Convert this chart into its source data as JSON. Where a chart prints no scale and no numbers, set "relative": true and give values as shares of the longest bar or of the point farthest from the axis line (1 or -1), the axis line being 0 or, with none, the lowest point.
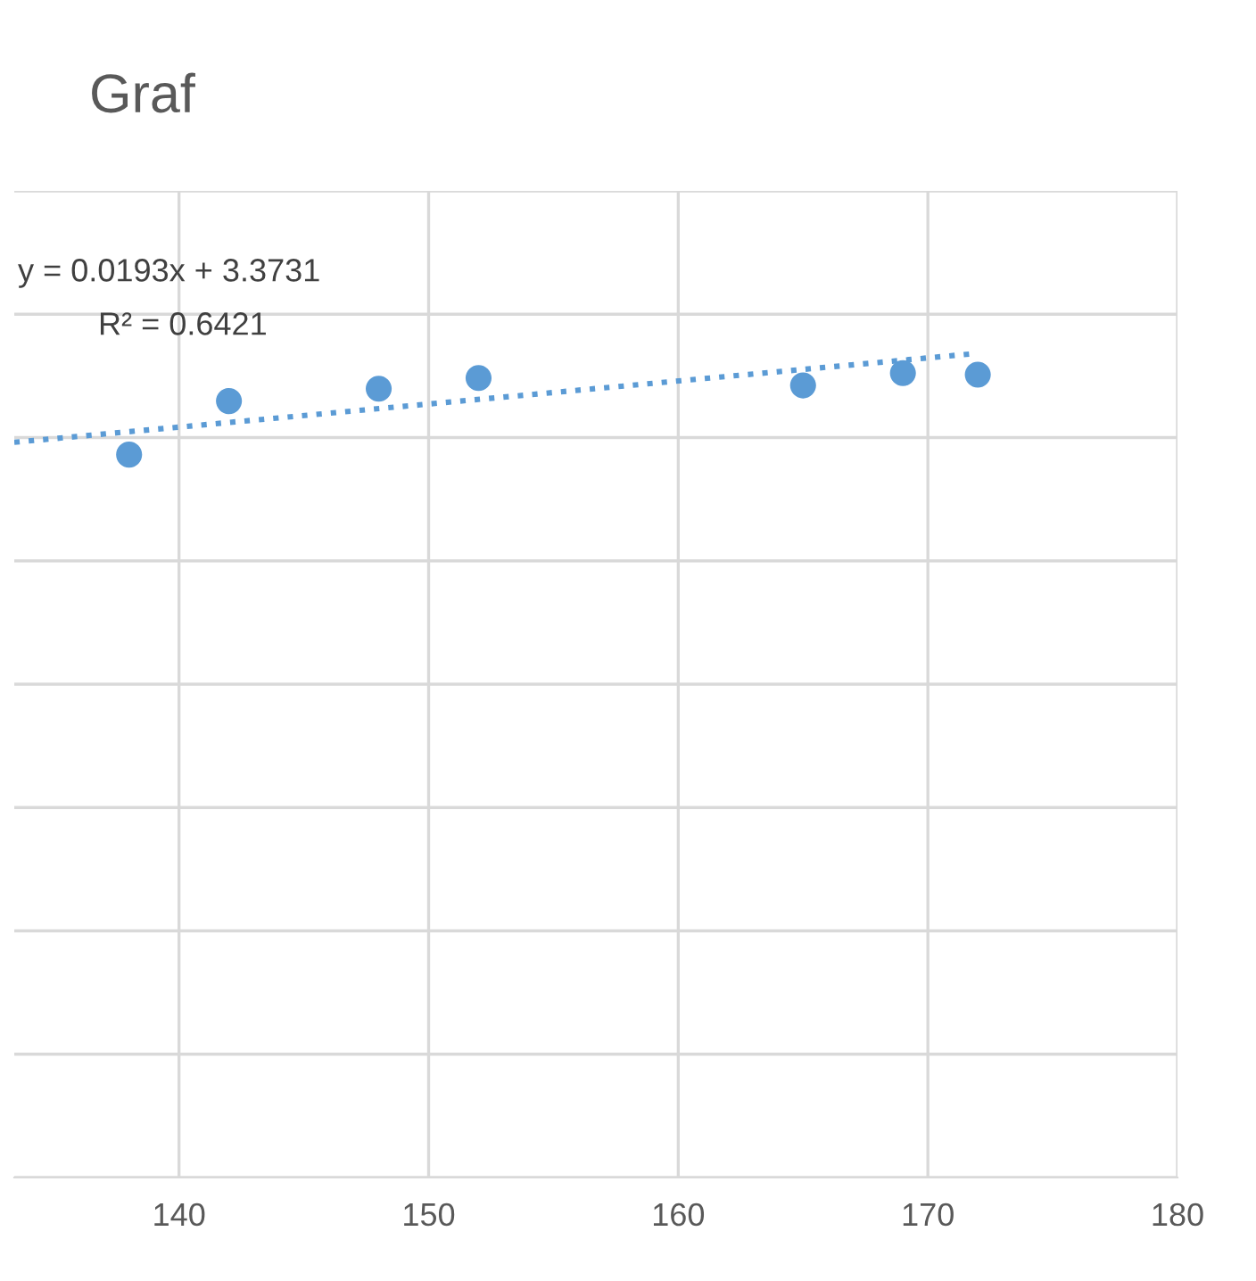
{
  "chart_data": {
    "type": "scatter",
    "title": "Graf",
    "relative": true,
    "xlim": [
      133.4,
      180
    ],
    "xticks": [
      140,
      150,
      160,
      170,
      180
    ],
    "grid": true,
    "legend": false,
    "tick_labels": "x",
    "annotations": [
      "y = 0.0193x + 3.3731",
      "R² = 0.6421"
    ],
    "series": [
      {
        "color": "#5b9bd5",
        "marker": "circle",
        "x": [
          138,
          142,
          148,
          152,
          165,
          169,
          172
        ],
        "values": [
          0.877,
          0.942,
          0.957,
          0.97,
          0.961,
          0.976,
          0.974
        ]
      },
      {
        "type": "line",
        "color": "#5b9bd5",
        "line_style": "dotted",
        "marker": "none",
        "x": [
          133.4,
          172
        ],
        "values": [
          0.892,
          1.0
        ]
      }
    ]
  }
}
